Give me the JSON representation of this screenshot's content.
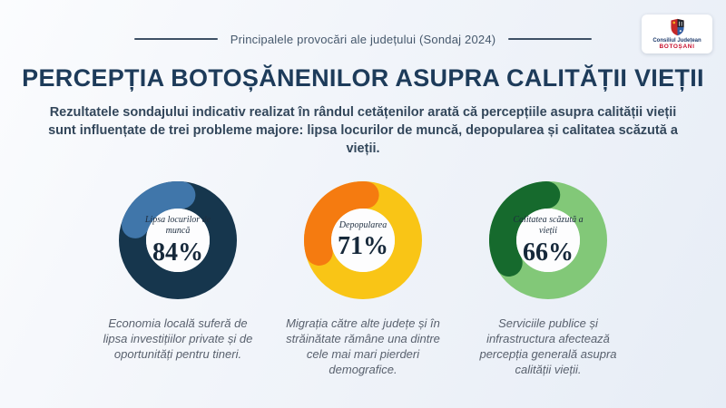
{
  "header": {
    "tagline": "Principalele provocări ale județului (Sondaj 2024)"
  },
  "logo": {
    "line1": "Consiliul Județean",
    "line2": "BOTOȘANI",
    "shield_colors": {
      "left": "#c62828",
      "right_top": "#1f242b",
      "right_bottom": "#2f5fa5",
      "crown": "#f2b01e"
    }
  },
  "title": "PERCEPȚIA BOTOȘĂNENILOR ASUPRA CALITĂȚII VIEȚII",
  "subtitle": "Rezultatele sondajului indicativ realizat în rândul cetățenilor arată că percepțiile asupra calității vieții sunt influențate de trei probleme majore: lipsa locurilor de muncă, depopularea și calitatea scăzută a vieții.",
  "colors": {
    "background": "#eef2f8",
    "title_navy": "#1d3b5a",
    "hole_fill": "#fdfdfe"
  },
  "chart_data": [
    {
      "type": "pie",
      "variant": "donut",
      "label": "Lipsa locurilor de muncă",
      "value": 84,
      "unit": "%",
      "percent_label": "84%",
      "remainder": 16,
      "color_main": "#16364d",
      "color_remainder": "#4076aa",
      "remainder_arc": {
        "start_deg": 290,
        "sweep_deg": 75
      },
      "description": "Economia locală suferă de lipsa investițiilor private și de oportunități pentru tineri."
    },
    {
      "type": "pie",
      "variant": "donut",
      "label": "Depopularea",
      "value": 71,
      "unit": "%",
      "percent_label": "71%",
      "remainder": 29,
      "color_main": "#f9c516",
      "color_remainder": "#f57b10",
      "remainder_arc": {
        "start_deg": 255,
        "sweep_deg": 108
      },
      "description": "Migrația către alte județe și în străinătate rămâne una dintre cele mai mari pierderi demografice."
    },
    {
      "type": "pie",
      "variant": "donut",
      "label": "Calitatea scăzută a vieții",
      "value": 66,
      "unit": "%",
      "percent_label": "66%",
      "remainder": 34,
      "color_main": "#82c878",
      "color_remainder": "#166a2d",
      "remainder_arc": {
        "start_deg": 240,
        "sweep_deg": 118
      },
      "description": "Serviciile publice și infrastructura afectează percepția generală asupra calității vieții."
    }
  ]
}
